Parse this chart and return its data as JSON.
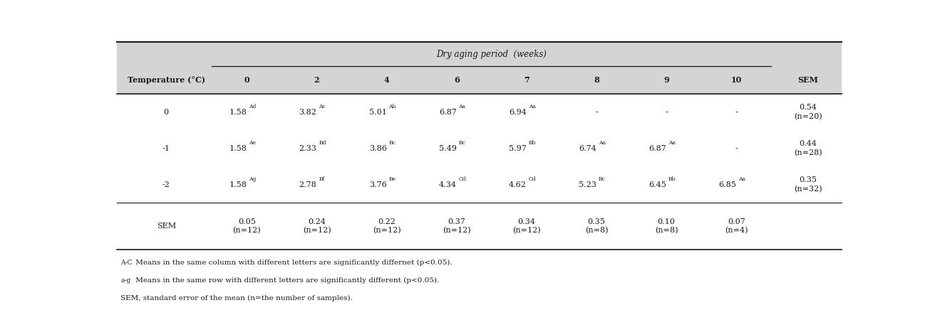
{
  "title": "Dry aging period  (weeks)",
  "col_labels": [
    "Temperature (°C)",
    "0",
    "2",
    "4",
    "6",
    "7",
    "8",
    "9",
    "10",
    "SEM"
  ],
  "temp_labels": [
    "0",
    "-1",
    "-2",
    "SEM"
  ],
  "cell_data": [
    [
      [
        "1.58",
        "Ad"
      ],
      [
        "3.82",
        "Ac"
      ],
      [
        "5.01",
        "Ab"
      ],
      [
        "6.87",
        "Aa"
      ],
      [
        "6.94",
        "Aa"
      ],
      [
        "-",
        ""
      ],
      [
        "-",
        ""
      ],
      [
        "-",
        ""
      ]
    ],
    [
      [
        "1.58",
        "Ae"
      ],
      [
        "2.33",
        "Bd"
      ],
      [
        "3.86",
        "Bc"
      ],
      [
        "5.49",
        "Bc"
      ],
      [
        "5.97",
        "Bb"
      ],
      [
        "6.74",
        "Aa"
      ],
      [
        "6.87",
        "Aa"
      ],
      [
        "-",
        ""
      ]
    ],
    [
      [
        "1.58",
        "Ag"
      ],
      [
        "2.78",
        "Bf"
      ],
      [
        "3.76",
        "Be"
      ],
      [
        "4.34",
        "Cd"
      ],
      [
        "4.62",
        "Cd"
      ],
      [
        "5.23",
        "Bc"
      ],
      [
        "6.45",
        "Bb"
      ],
      [
        "6.85",
        "Aa"
      ]
    ],
    [
      [
        "0.05\n(n=12)",
        ""
      ],
      [
        "0.24\n(n=12)",
        ""
      ],
      [
        "0.22\n(n=12)",
        ""
      ],
      [
        "0.37\n(n=12)",
        ""
      ],
      [
        "0.34\n(n=12)",
        ""
      ],
      [
        "0.35\n(n=8)",
        ""
      ],
      [
        "0.10\n(n=8)",
        ""
      ],
      [
        "0.07\n(n=4)",
        ""
      ]
    ]
  ],
  "sem_col": [
    "0.54\n(n=20)",
    "0.44\n(n=28)",
    "0.35\n(n=32)",
    ""
  ],
  "footnotes": [
    [
      "A-C",
      " Means in the same column with different letters are significantly differnet (p<0.05)."
    ],
    [
      "a-g",
      " Means in the same row with different letters are significantly different (p<0.05)."
    ],
    [
      "SEM,",
      " standard error of the mean (n=the number of samples)."
    ]
  ],
  "header_bg": "#d4d4d4",
  "text_color": "#1a1a1a",
  "line_color": "#1a1a1a",
  "fs_main": 8.0,
  "fs_header": 8.5,
  "fs_super": 5.5,
  "fs_footnote": 7.5
}
